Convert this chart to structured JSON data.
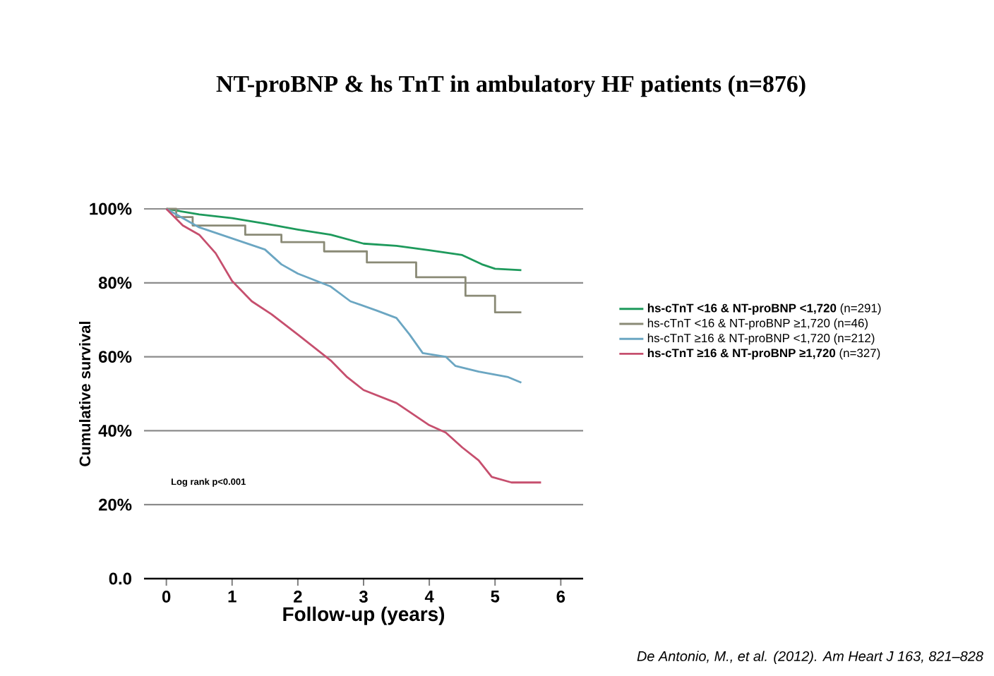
{
  "chart_data": {
    "type": "line",
    "title": "NT-proBNP & hs TnT in ambulatory HF patients (n=876)",
    "xlabel": "Follow-up (years)",
    "ylabel": "Cumulative survival",
    "xlim": [
      -0.34,
      6.34
    ],
    "xticks": [
      0,
      1,
      2,
      3,
      4,
      5,
      6
    ],
    "ylim": [
      0,
      100
    ],
    "yticks": [
      {
        "value": 0,
        "label": "0.0"
      },
      {
        "value": 20,
        "label": "20%"
      },
      {
        "value": 40,
        "label": "40%"
      },
      {
        "value": 60,
        "label": "60%"
      },
      {
        "value": 80,
        "label": "80%"
      },
      {
        "value": 100,
        "label": "100%"
      }
    ],
    "grid": "y",
    "legend": "right",
    "line_style": "solid",
    "marker": "none",
    "annotations": [
      "Log rank p<0.001",
      "De Antonio, M., et al. (2012). Am Heart J 163, 821–828"
    ],
    "series": [
      {
        "name": "**hs-cTnT <16 & NT-proBNP <1,720** (n=291)",
        "color": "#1e9a5c",
        "x": [
          0,
          0.5,
          1,
          1.5,
          2,
          2.5,
          3,
          3.5,
          4,
          4.5,
          4.8,
          5,
          5.4
        ],
        "values": [
          100,
          98.5,
          97.5,
          96,
          94.4,
          93,
          90.6,
          90,
          88.8,
          87.5,
          85,
          83.8,
          83.4
        ]
      },
      {
        "name": "hs-cTnT <16 & NT-proBNP ≥1,720 (n=46)",
        "color": "#8a8a76",
        "type": "step",
        "x": [
          0,
          0.15,
          0.4,
          1.2,
          1.75,
          2.4,
          3.05,
          3.8,
          4.55,
          5,
          5.4
        ],
        "values": [
          100,
          97.8,
          95.5,
          93,
          91,
          88.5,
          85.5,
          81.5,
          76.5,
          72,
          72
        ]
      },
      {
        "name": "hs-cTnT ≥16 & NT-proBNP <1,720 (n=212)",
        "color": "#6ba6c2",
        "x": [
          0,
          0.5,
          1,
          1.5,
          1.75,
          2,
          2.5,
          2.8,
          3.2,
          3.5,
          3.7,
          3.9,
          4.25,
          4.4,
          4.75,
          5.2,
          5.4
        ],
        "values": [
          100,
          95,
          92,
          89,
          85,
          82.5,
          79,
          75,
          72.5,
          70.5,
          66,
          61,
          60,
          57.5,
          56,
          54.5,
          53
        ]
      },
      {
        "name": "**hs-cTnT ≥16 & NT-proBNP ≥1,720** (n=327)",
        "color": "#c64f6e",
        "x": [
          0,
          0.25,
          0.5,
          0.75,
          1,
          1.3,
          1.6,
          2,
          2.5,
          2.75,
          3,
          3.5,
          4,
          4.25,
          4.5,
          4.75,
          4.95,
          5.25,
          5.7
        ],
        "values": [
          100,
          95.5,
          93,
          88,
          80.5,
          75,
          71.5,
          66,
          59,
          54.5,
          51,
          47.5,
          41.5,
          39.5,
          35.5,
          32,
          27.5,
          26,
          26
        ]
      }
    ]
  }
}
